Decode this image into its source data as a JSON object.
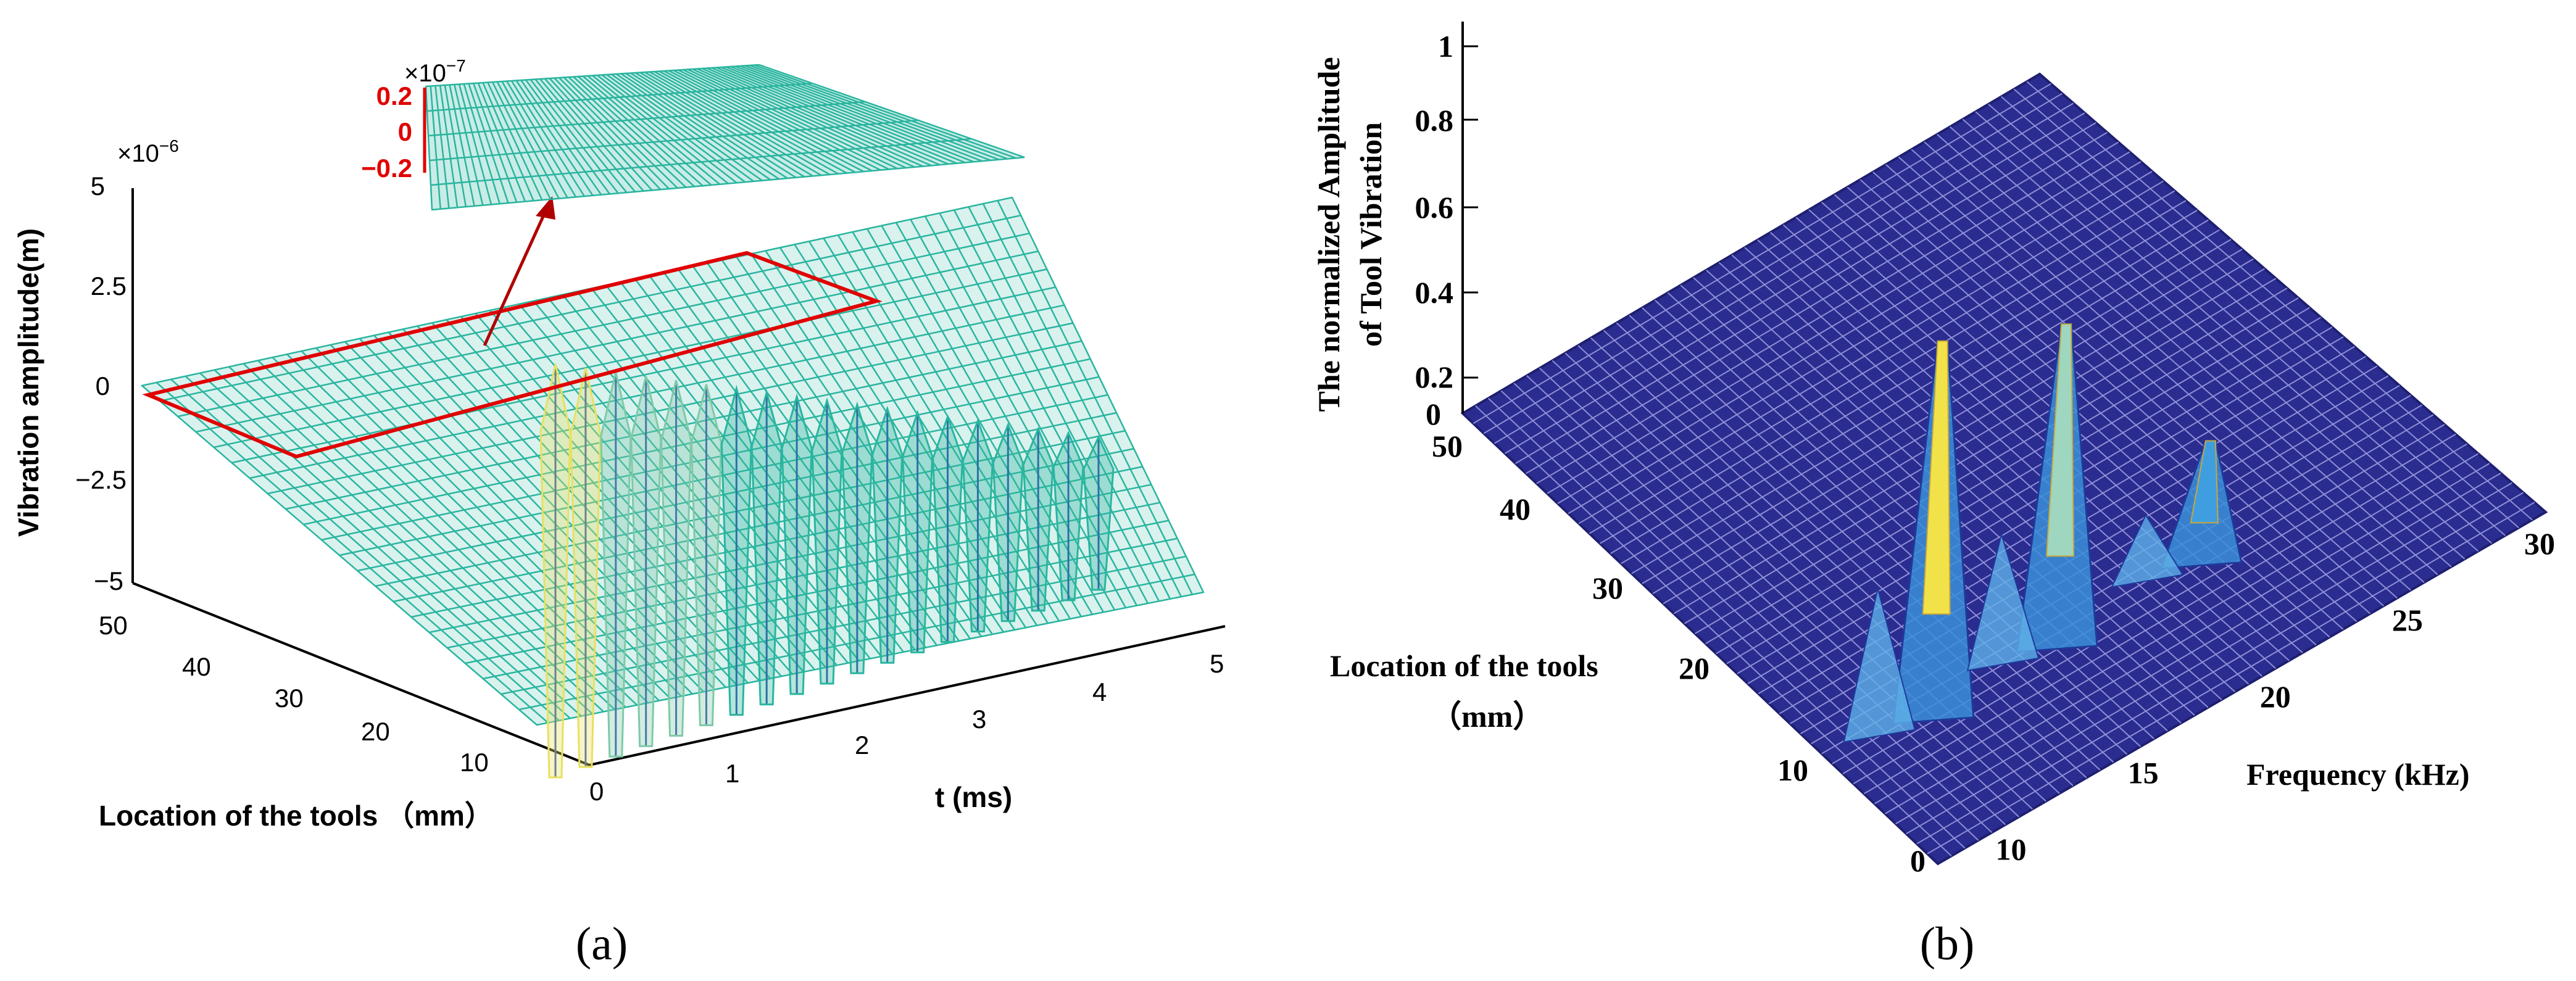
{
  "chart_data": [
    {
      "type": "surface3d",
      "panel": "(a)",
      "title": "",
      "zlabel": "Vibration amplitude(m)",
      "ylabel": "Location of the tools （mm）",
      "xlabel": "t (ms)",
      "z_exponent": "×10",
      "z_exponent_power": "−6",
      "z_ticks": [
        "5",
        "2.5",
        "0",
        "−2.5",
        "−5"
      ],
      "zlim": [
        -5,
        5
      ],
      "y_ticks": [
        "50",
        "40",
        "30",
        "20",
        "10",
        "0"
      ],
      "ylim": [
        0,
        50
      ],
      "x_ticks": [
        "1",
        "2",
        "3",
        "4",
        "5"
      ],
      "xlim": [
        0,
        5
      ],
      "peak_count": 19,
      "surface_color": "#2ab59f",
      "highlight_color": "#e00000",
      "inset": {
        "exponent": "×10",
        "exponent_power": "−7",
        "ticks": [
          "0.2",
          "0",
          "−0.2"
        ],
        "zlim": [
          -0.2,
          0.2
        ]
      }
    },
    {
      "type": "surface3d",
      "panel": "(b)",
      "zlabel_line1": "The normalized Amplitude",
      "zlabel_line2": "of Tool Vibration",
      "ylabel_line1": "Location of the tools",
      "ylabel_line2": "（mm）",
      "xlabel": "Frequency (kHz)",
      "z_ticks": [
        "1",
        "0.8",
        "0.6",
        "0.4",
        "0.2",
        "0"
      ],
      "zlim": [
        0,
        1
      ],
      "y_ticks": [
        "50",
        "40",
        "30",
        "20",
        "10",
        "0"
      ],
      "ylim": [
        0,
        50
      ],
      "x_ticks": [
        "10",
        "15",
        "20",
        "25",
        "30"
      ],
      "x_tick_values": [
        10,
        15,
        20,
        25,
        30
      ],
      "xlim": [
        7,
        30
      ],
      "peaks": [
        {
          "frequency_khz": 12,
          "amplitude": 1.0
        },
        {
          "frequency_khz": 18,
          "amplitude": 0.85
        },
        {
          "frequency_khz": 25,
          "amplitude": 0.3
        }
      ],
      "grid_color": "#2b2c8f"
    }
  ]
}
